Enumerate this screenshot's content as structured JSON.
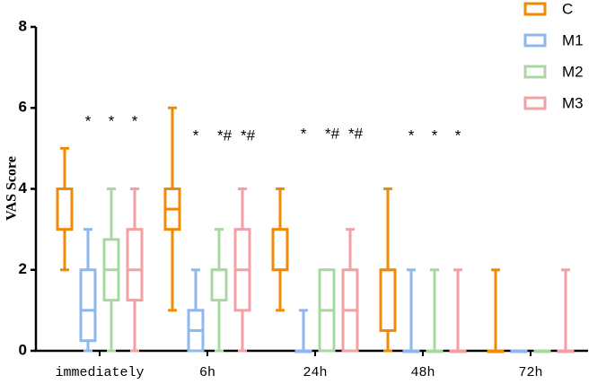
{
  "chart_data": {
    "type": "box",
    "y_label": "VAS Score",
    "categories": [
      "immediately",
      "6h",
      "24h",
      "48h",
      "72h"
    ],
    "ylim": [
      0,
      8
    ],
    "yticks": [
      0,
      2,
      4,
      6,
      8
    ],
    "series": [
      {
        "name": "C",
        "color": "#f08a00",
        "min": [
          2,
          1,
          1,
          0,
          0
        ],
        "q1": [
          3,
          3,
          2,
          0.5,
          0
        ],
        "median": [
          4,
          3.5,
          2,
          2,
          0
        ],
        "q3": [
          4,
          4,
          3,
          2,
          0
        ],
        "max": [
          5,
          6,
          4,
          4,
          2
        ],
        "annotations": [
          null,
          null,
          null,
          null,
          null
        ]
      },
      {
        "name": "M1",
        "color": "#8cb8ef",
        "min": [
          0,
          0,
          0,
          0,
          0
        ],
        "q1": [
          0.25,
          0,
          0,
          0,
          0
        ],
        "median": [
          1,
          0.5,
          0,
          0,
          0
        ],
        "q3": [
          2,
          1,
          0,
          0,
          0
        ],
        "max": [
          3,
          2,
          1,
          2,
          0
        ],
        "annotations": [
          "*",
          "*",
          "*",
          "*",
          null
        ]
      },
      {
        "name": "M2",
        "color": "#a8d8a0",
        "min": [
          0,
          0,
          0,
          0,
          0
        ],
        "q1": [
          1.25,
          1.25,
          0,
          0,
          0
        ],
        "median": [
          2,
          2,
          1,
          0,
          0
        ],
        "q3": [
          2.75,
          2,
          2,
          0,
          0
        ],
        "max": [
          4,
          3,
          2,
          2,
          0
        ],
        "annotations": [
          "*",
          "*#",
          "*#",
          "*",
          null
        ]
      },
      {
        "name": "M3",
        "color": "#f2a0a4",
        "min": [
          0,
          0,
          0,
          0,
          0
        ],
        "q1": [
          1.25,
          1,
          0,
          0,
          0
        ],
        "median": [
          2,
          2,
          1,
          0,
          0
        ],
        "q3": [
          3,
          3,
          2,
          0,
          0
        ],
        "max": [
          4,
          4,
          3,
          2,
          2
        ],
        "annotations": [
          "*",
          "*#",
          "*#",
          "*",
          null
        ]
      }
    ]
  }
}
